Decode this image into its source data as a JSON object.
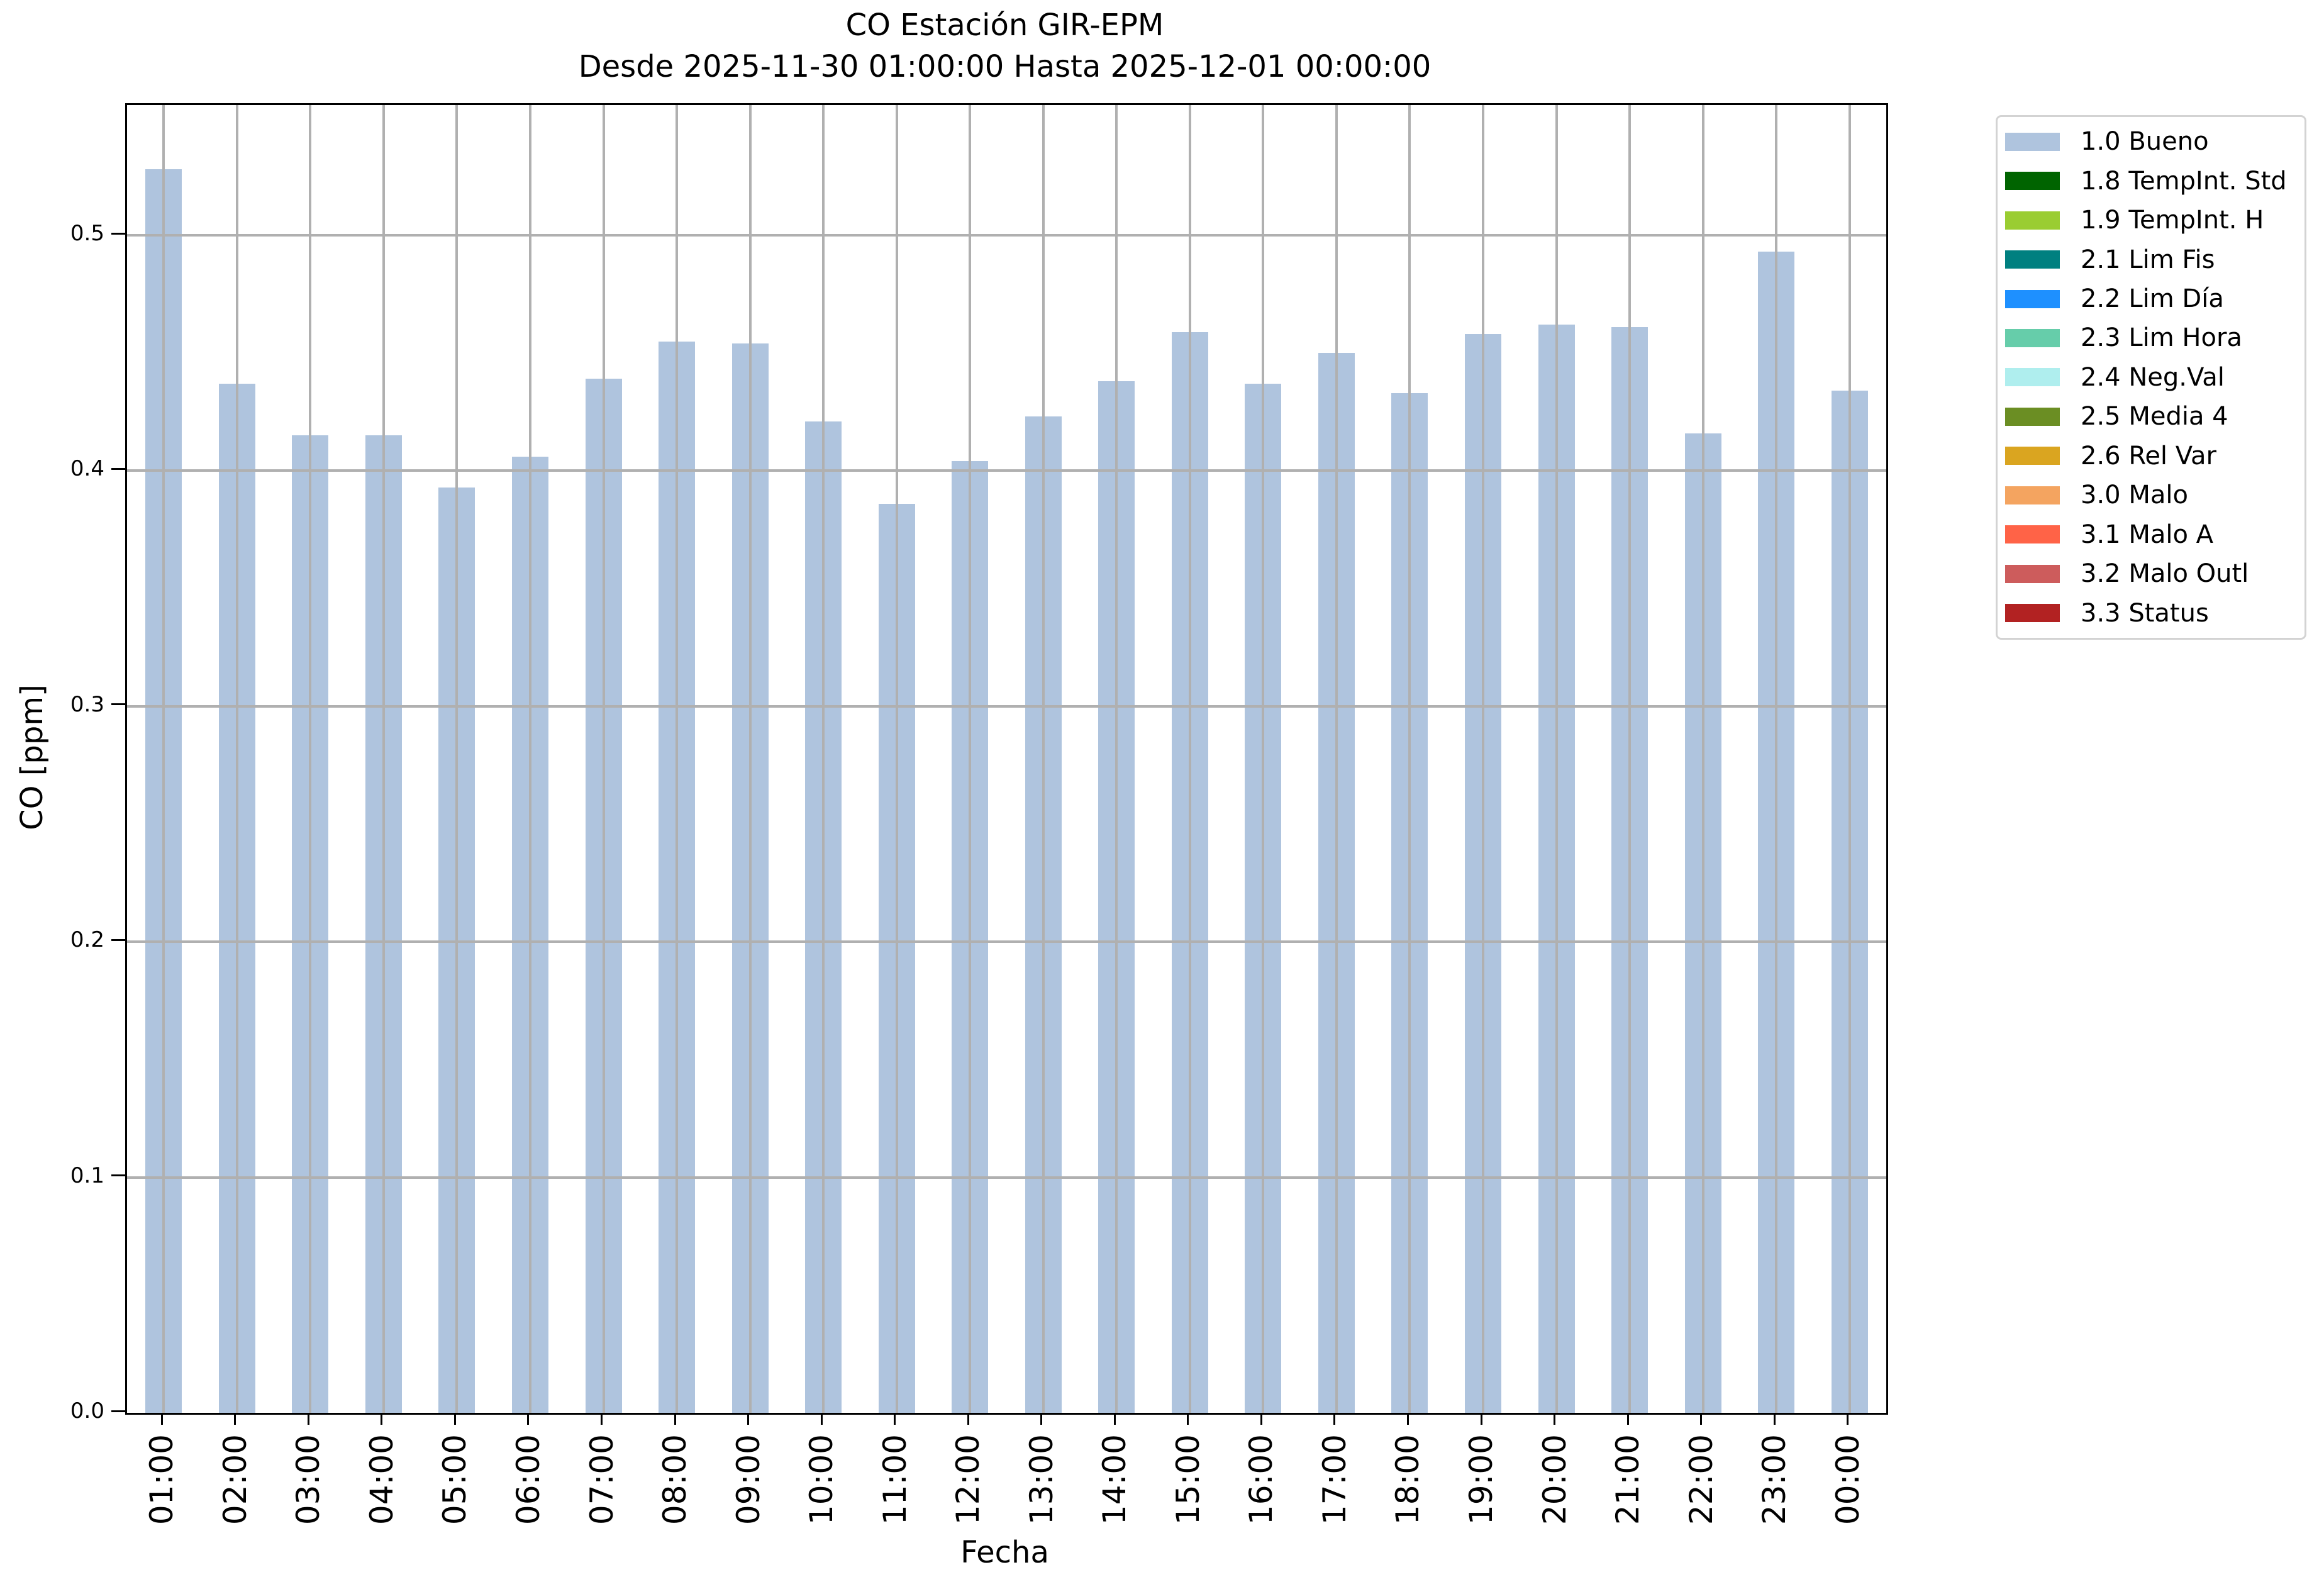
{
  "chart_data": {
    "type": "bar",
    "title": "CO Estación GIR-EPM",
    "subtitle": "Desde 2025-11-30 01:00:00 Hasta 2025-12-01 00:00:00",
    "xlabel": "Fecha",
    "ylabel": "CO [ppm]",
    "categories": [
      "01:00",
      "02:00",
      "03:00",
      "04:00",
      "05:00",
      "06:00",
      "07:00",
      "08:00",
      "09:00",
      "10:00",
      "11:00",
      "12:00",
      "13:00",
      "14:00",
      "15:00",
      "16:00",
      "17:00",
      "18:00",
      "19:00",
      "20:00",
      "21:00",
      "22:00",
      "23:00",
      "00:00"
    ],
    "values": [
      0.528,
      0.437,
      0.415,
      0.415,
      0.393,
      0.406,
      0.439,
      0.455,
      0.454,
      0.421,
      0.386,
      0.404,
      0.423,
      0.438,
      0.459,
      0.437,
      0.45,
      0.433,
      0.458,
      0.462,
      0.461,
      0.416,
      0.493,
      0.434
    ],
    "series_name": "1.0 Bueno",
    "bar_color": "#AFC4DE",
    "ylim": [
      0,
      0.5553
    ],
    "yticks": [
      "0.0",
      "0.1",
      "0.2",
      "0.3",
      "0.4",
      "0.5"
    ],
    "grid": true,
    "legend_position": "outside-upper-right",
    "legend": [
      {
        "label": "1.0 Bueno",
        "color": "#AFC4DE"
      },
      {
        "label": "1.8 TempInt. Std",
        "color": "#006400"
      },
      {
        "label": "1.9 TempInt. H",
        "color": "#9ACD32"
      },
      {
        "label": "2.1 Lim Fis",
        "color": "#008080"
      },
      {
        "label": "2.2 Lim Día",
        "color": "#1E90FF"
      },
      {
        "label": "2.3 Lim Hora",
        "color": "#66CDAA"
      },
      {
        "label": "2.4 Neg.Val",
        "color": "#AFEEEE"
      },
      {
        "label": "2.5 Media 4",
        "color": "#6B8E23"
      },
      {
        "label": "2.6 Rel Var",
        "color": "#DAA520"
      },
      {
        "label": "3.0 Malo",
        "color": "#F4A460"
      },
      {
        "label": "3.1 Malo A",
        "color": "#FF6347"
      },
      {
        "label": "3.2 Malo Outl",
        "color": "#CD5C5C"
      },
      {
        "label": "3.3 Status",
        "color": "#B22222"
      }
    ]
  },
  "colors": {
    "grid": "#B0B0B0",
    "axis": "#000000",
    "legend_border": "#D3D3D3",
    "background": "#FFFFFF"
  }
}
